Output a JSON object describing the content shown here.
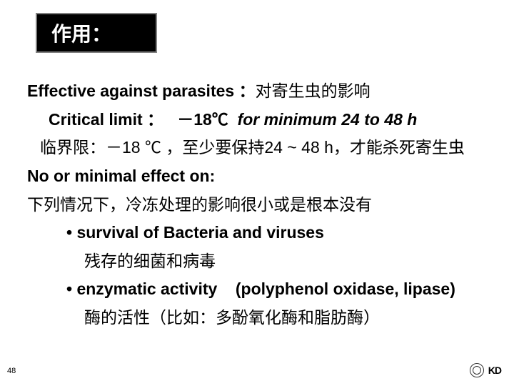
{
  "title": "作用：",
  "line1_en": "Effective against parasites ：",
  "line1_cn": "对寄生虫的影响",
  "line2_label": "Critical limit ：",
  "line2_temp": "－18℃",
  "line2_rest": "for minimum 24 to 48 h",
  "line3": "临界限：－18 ℃ ，至少要保持24 ~ 48 h，才能杀死寄生虫",
  "line4": "No or minimal effect on:",
  "line5": "下列情况下，冷冻处理的影响很小或是根本没有",
  "bullet1_en": "• survival of Bacteria and viruses",
  "bullet1_cn": "残存的细菌和病毒",
  "bullet2_en_a": "• enzymatic activity",
  "bullet2_en_b": "(polyphenol oxidase, lipase)",
  "bullet2_cn": "酶的活性（比如：多酚氧化酶和脂肪酶）",
  "page_number": "48",
  "kd_text": "KD"
}
